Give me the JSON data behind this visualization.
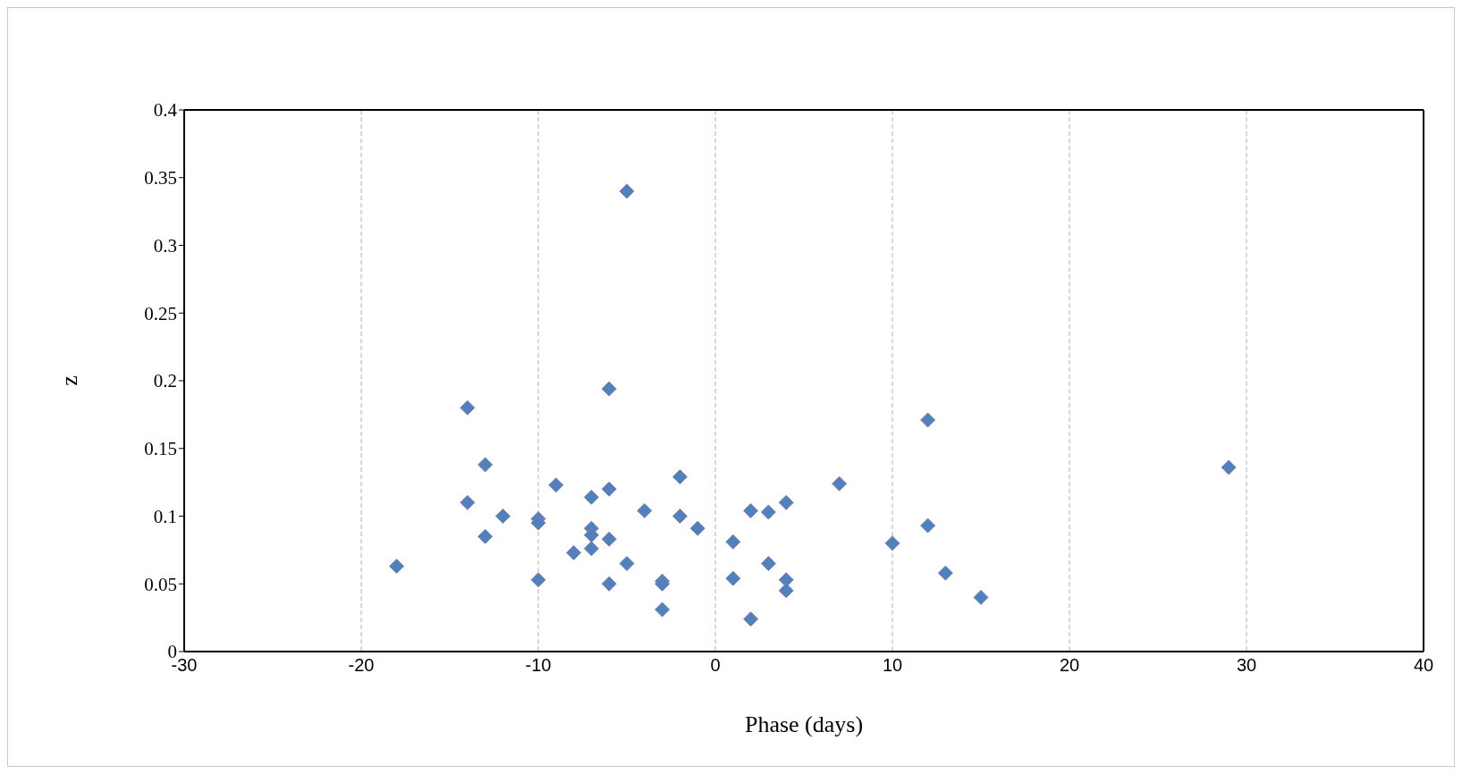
{
  "chart_data": {
    "type": "scatter",
    "xlabel": "Phase (days)",
    "ylabel": "z",
    "x": [
      -18,
      -14,
      -14,
      -13,
      -13,
      -12,
      -10,
      -10,
      -10,
      -9,
      -8,
      -7,
      -7,
      -7,
      -7,
      -6,
      -6,
      -6,
      -6,
      -5,
      -5,
      -4,
      -3,
      -3,
      -3,
      -2,
      -2,
      -1,
      1,
      1,
      2,
      2,
      3,
      3,
      4,
      4,
      4,
      7,
      10,
      12,
      12,
      13,
      15,
      29
    ],
    "series": [
      {
        "color": "#4f81bd",
        "values": [
          0.063,
          0.18,
          0.11,
          0.138,
          0.085,
          0.1,
          0.098,
          0.095,
          0.053,
          0.123,
          0.073,
          0.114,
          0.091,
          0.086,
          0.076,
          0.194,
          0.12,
          0.083,
          0.05,
          0.34,
          0.065,
          0.104,
          0.052,
          0.05,
          0.031,
          0.129,
          0.1,
          0.091,
          0.081,
          0.054,
          0.104,
          0.024,
          0.103,
          0.065,
          0.11,
          0.053,
          0.045,
          0.124,
          0.08,
          0.171,
          0.093,
          0.058,
          0.04,
          0.136
        ]
      }
    ],
    "xlim": [
      -30,
      40
    ],
    "xticks": [
      -30,
      -20,
      -10,
      0,
      10,
      20,
      30,
      40
    ],
    "ylim": [
      0,
      0.4
    ],
    "yticks": [
      0,
      0.05,
      0.1,
      0.15,
      0.2,
      0.25,
      0.3,
      0.35,
      0.4
    ],
    "grid": "x",
    "marker": "diamond",
    "legend": false
  }
}
